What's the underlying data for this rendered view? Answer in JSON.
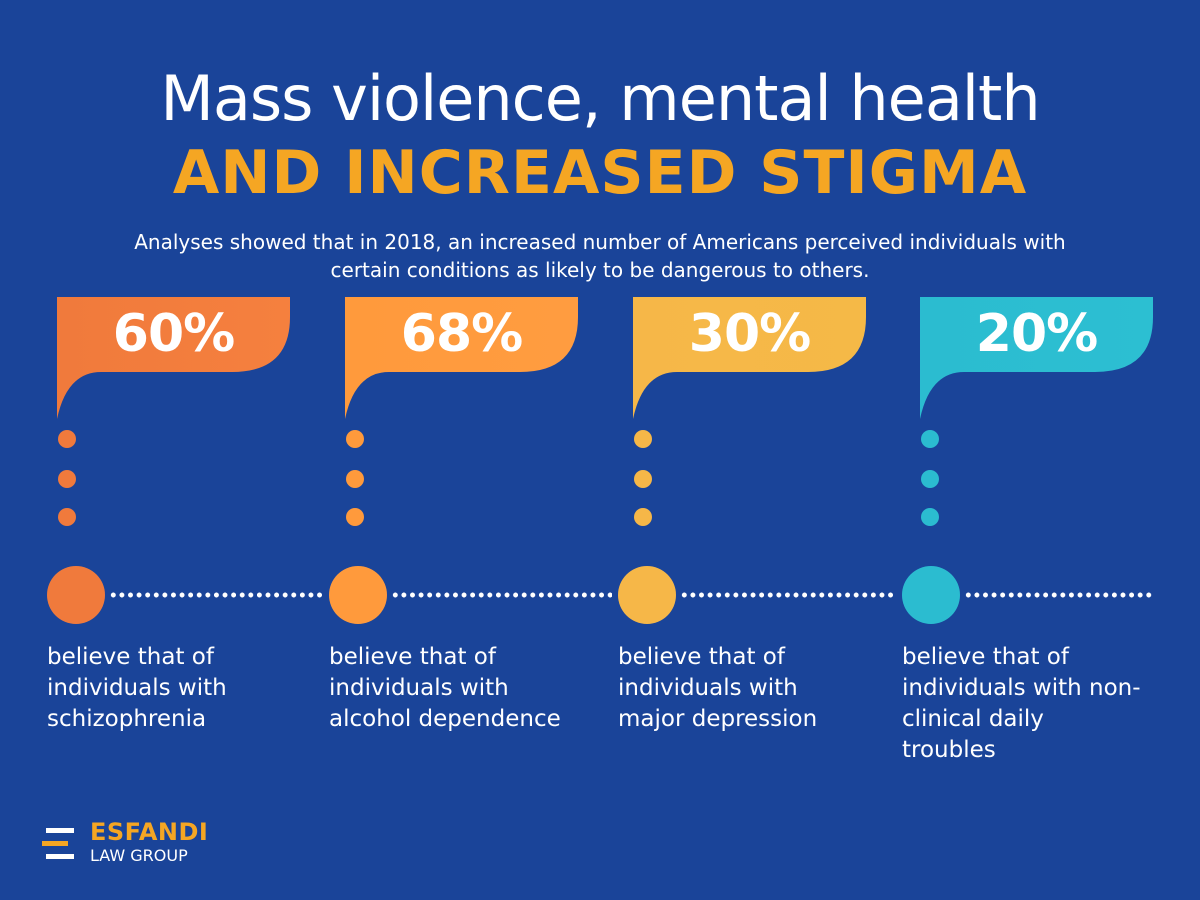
{
  "header": {
    "title_line1": "Mass violence, mental health",
    "title_line2": "AND INCREASED STIGMA",
    "subtitle": "Analyses showed that in 2018, an increased number of Americans perceived individuals with certain conditions as likely to be dangerous to others."
  },
  "stats": [
    {
      "value": "60%",
      "description": "believe that of individuals with schizophrenia",
      "color": "#f07a3c",
      "color_top": "#f5803e"
    },
    {
      "value": "68%",
      "description": "believe that of individuals with alcohol dependence",
      "color": "#ff9a3c",
      "color_top": "#ff9c40"
    },
    {
      "value": "30%",
      "description": "believe that of individuals with major depression",
      "color": "#f6b748",
      "color_top": "#f5b947"
    },
    {
      "value": "20%",
      "description": "believe that of individuals with non-clinical daily troubles",
      "color": "#2bbcd0",
      "color_top": "#2cbfd2"
    }
  ],
  "logo": {
    "line1": "ESFANDI",
    "line2": "LAW GROUP"
  },
  "colors": {
    "background": "#1a4499",
    "accent": "#f5a623",
    "text": "#ffffff"
  }
}
